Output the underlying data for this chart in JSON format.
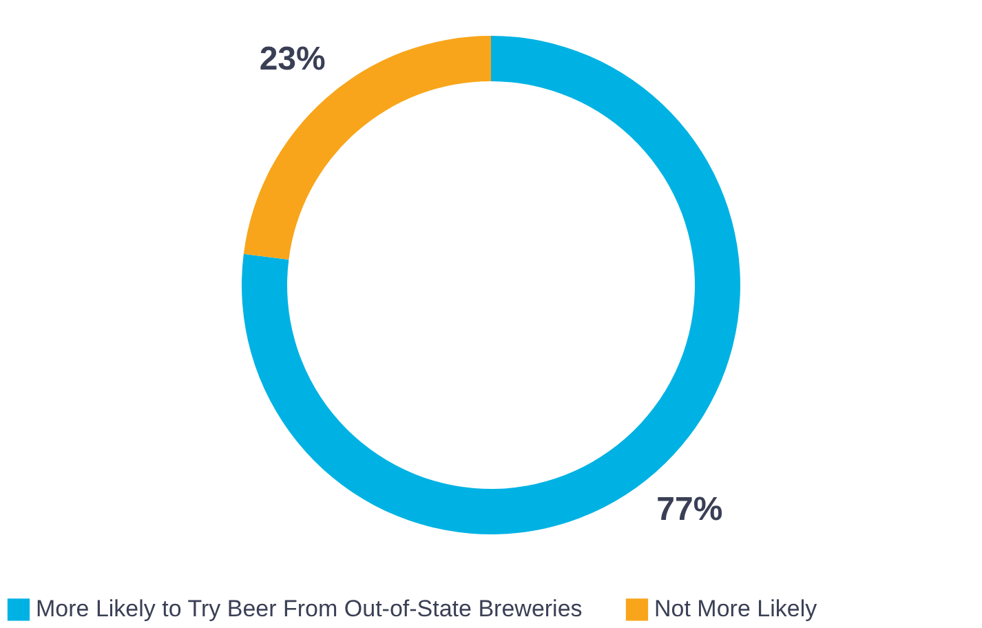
{
  "chart_data": {
    "type": "donut",
    "categories": [
      "More Likely to Try Beer From Out-of-State Breweries",
      "Not More Likely"
    ],
    "values": [
      77,
      23
    ],
    "colors": [
      "#00b2e3",
      "#f8a51b"
    ],
    "value_labels": [
      "77%",
      "23%"
    ],
    "legend": "bottom"
  }
}
